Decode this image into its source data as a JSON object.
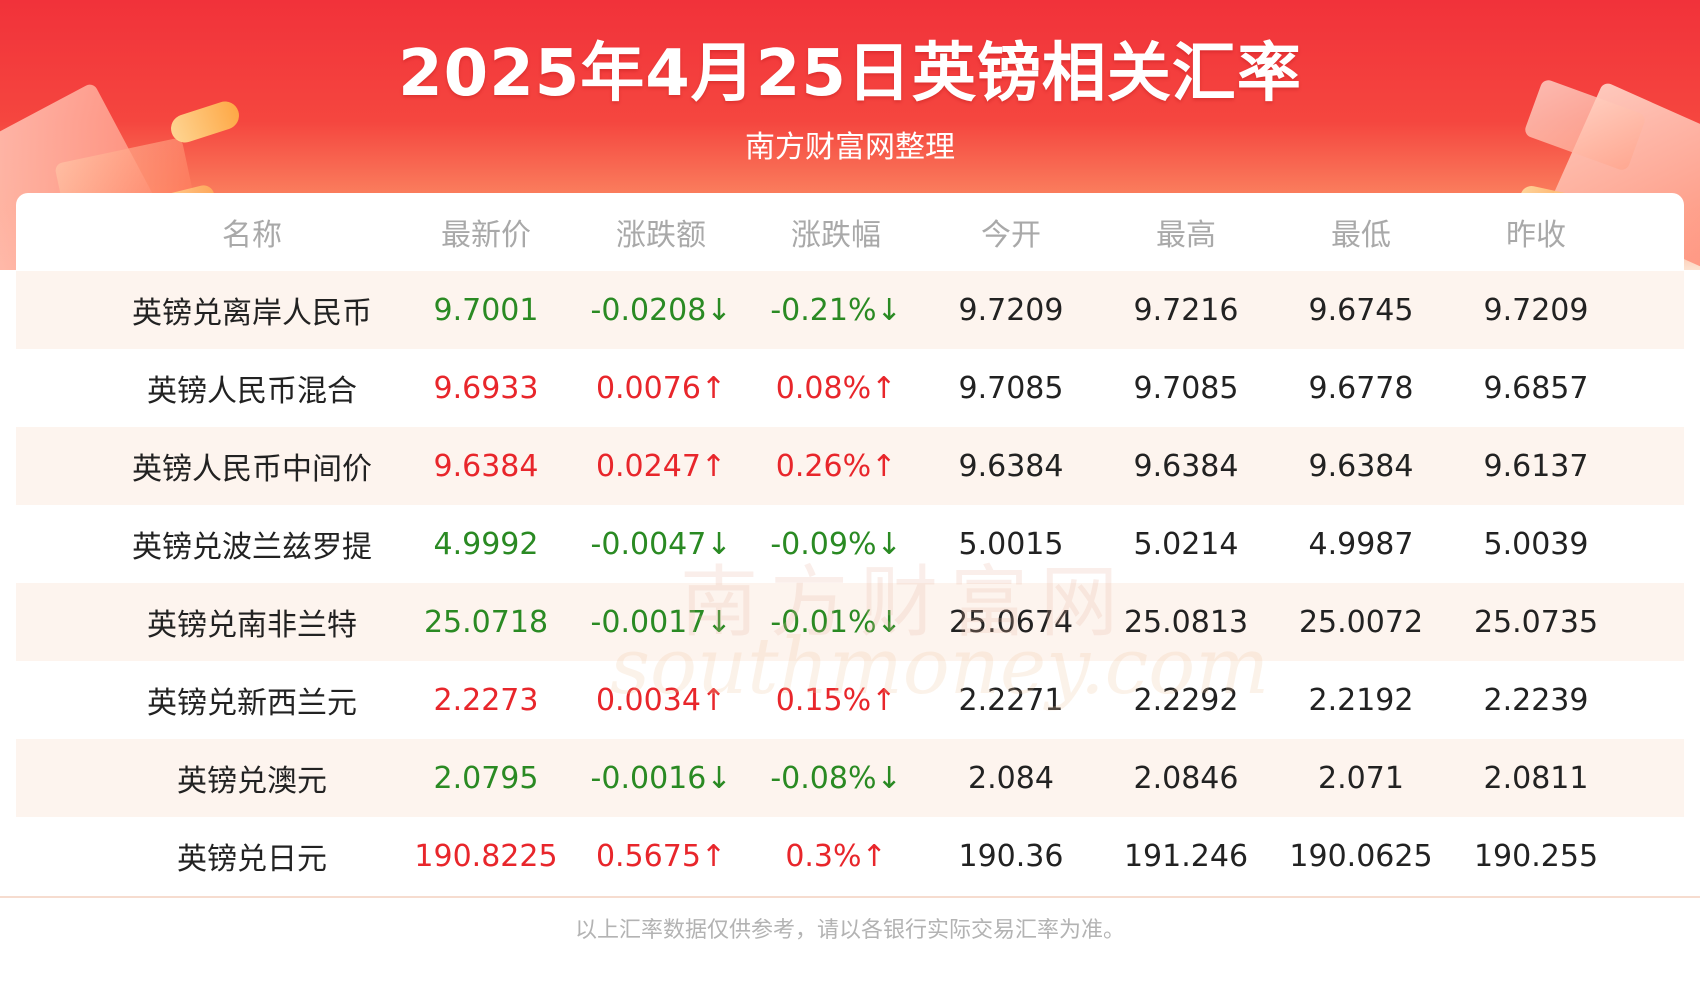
{
  "header": {
    "title": "2025年4月25日英镑相关汇率",
    "subtitle": "南方财富网整理"
  },
  "table": {
    "columns": [
      "名称",
      "最新价",
      "涨跌额",
      "涨跌幅",
      "今开",
      "最高",
      "最低",
      "昨收"
    ],
    "rows": [
      {
        "name": "英镑兑离岸人民币",
        "latest": "9.7001",
        "change": "-0.0208↓",
        "pct": "-0.21%↓",
        "open": "9.7209",
        "high": "9.7216",
        "low": "9.6745",
        "prev_close": "9.7209",
        "trend": "down"
      },
      {
        "name": "英镑人民币混合",
        "latest": "9.6933",
        "change": "0.0076↑",
        "pct": "0.08%↑",
        "open": "9.7085",
        "high": "9.7085",
        "low": "9.6778",
        "prev_close": "9.6857",
        "trend": "up"
      },
      {
        "name": "英镑人民币中间价",
        "latest": "9.6384",
        "change": "0.0247↑",
        "pct": "0.26%↑",
        "open": "9.6384",
        "high": "9.6384",
        "low": "9.6384",
        "prev_close": "9.6137",
        "trend": "up"
      },
      {
        "name": "英镑兑波兰兹罗提",
        "latest": "4.9992",
        "change": "-0.0047↓",
        "pct": "-0.09%↓",
        "open": "5.0015",
        "high": "5.0214",
        "low": "4.9987",
        "prev_close": "5.0039",
        "trend": "down"
      },
      {
        "name": "英镑兑南非兰特",
        "latest": "25.0718",
        "change": "-0.0017↓",
        "pct": "-0.01%↓",
        "open": "25.0674",
        "high": "25.0813",
        "low": "25.0072",
        "prev_close": "25.0735",
        "trend": "down"
      },
      {
        "name": "英镑兑新西兰元",
        "latest": "2.2273",
        "change": "0.0034↑",
        "pct": "0.15%↑",
        "open": "2.2271",
        "high": "2.2292",
        "low": "2.2192",
        "prev_close": "2.2239",
        "trend": "up"
      },
      {
        "name": "英镑兑澳元",
        "latest": "2.0795",
        "change": "-0.0016↓",
        "pct": "-0.08%↓",
        "open": "2.084",
        "high": "2.0846",
        "low": "2.071",
        "prev_close": "2.0811",
        "trend": "down"
      },
      {
        "name": "英镑兑日元",
        "latest": "190.8225",
        "change": "0.5675↑",
        "pct": "0.3%↑",
        "open": "190.36",
        "high": "191.246",
        "low": "190.0625",
        "prev_close": "190.255",
        "trend": "up"
      }
    ]
  },
  "footer": {
    "note": "以上汇率数据仅供参考，请以各银行实际交易汇率为准。"
  },
  "watermark": {
    "cn": "南方财富网",
    "en": "southmoney.com"
  },
  "colors": {
    "up": "#e8262b",
    "down": "#2a8a23",
    "banner": "#f1323a"
  }
}
